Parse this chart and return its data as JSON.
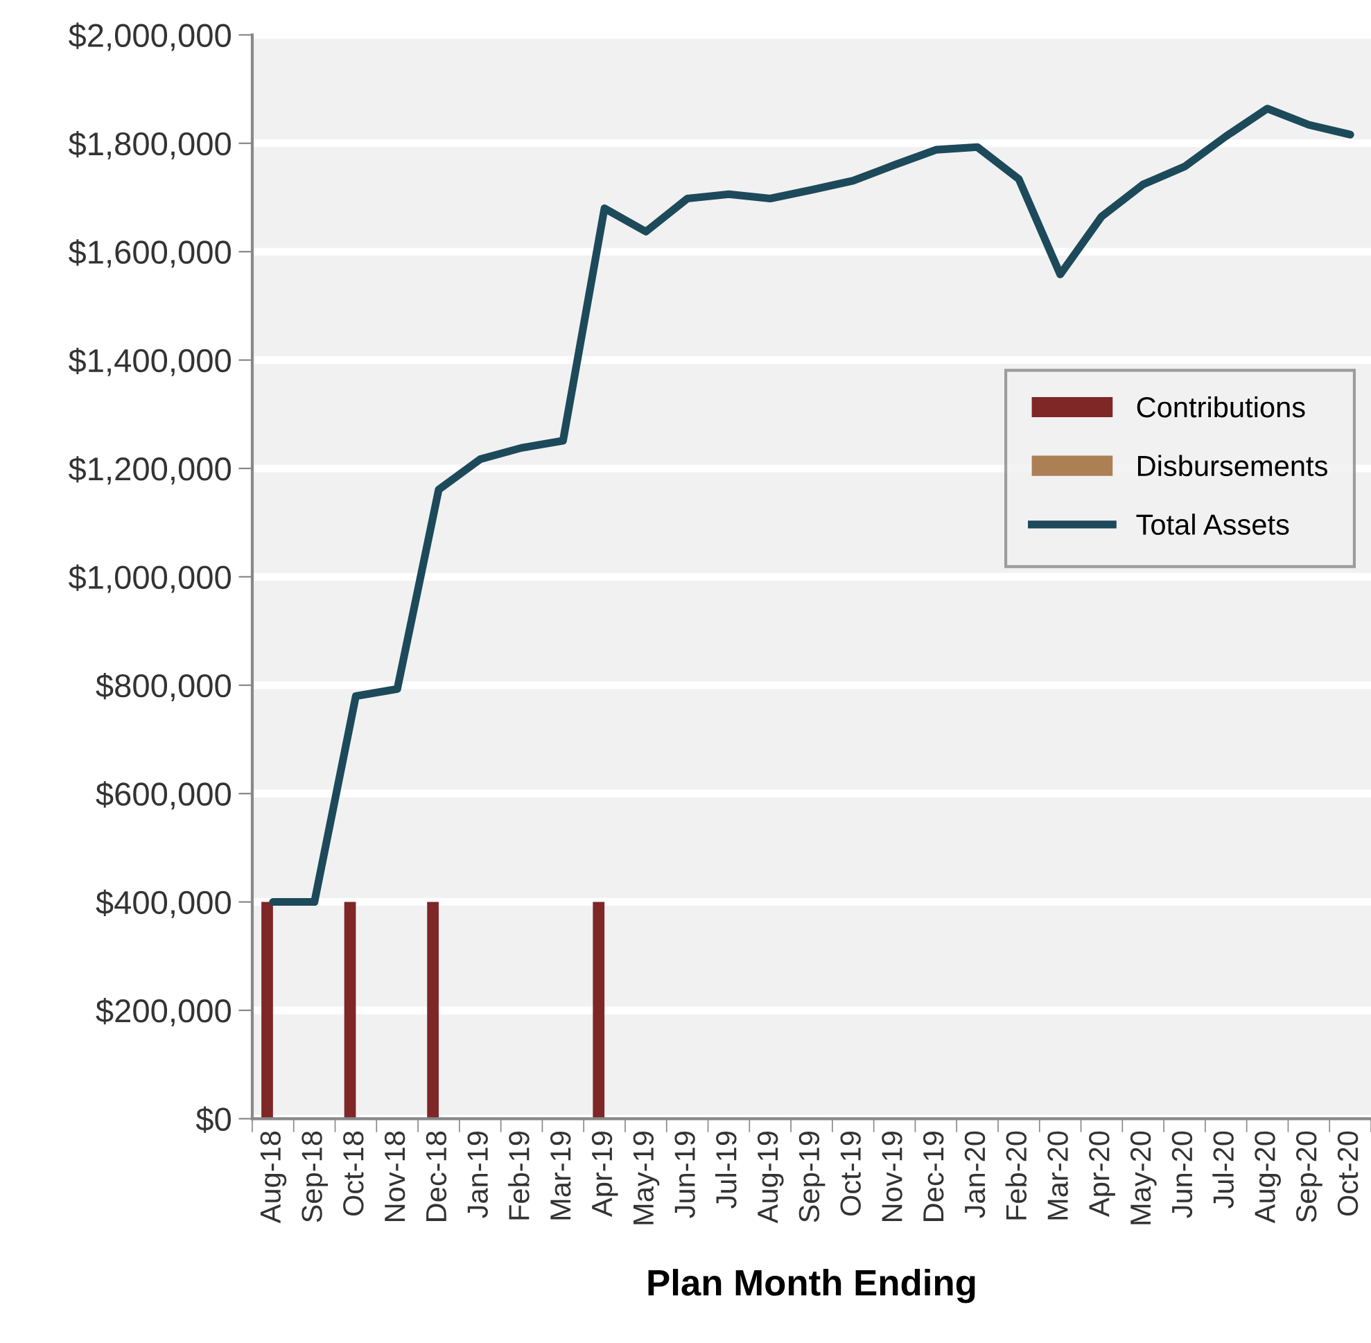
{
  "chart_data": {
    "type": "bar",
    "xlabel": "Plan Month Ending",
    "categories": [
      "Aug-18",
      "Sep-18",
      "Oct-18",
      "Nov-18",
      "Dec-18",
      "Jan-19",
      "Feb-19",
      "Mar-19",
      "Apr-19",
      "May-19",
      "Jun-19",
      "Jul-19",
      "Aug-19",
      "Sep-19",
      "Oct-19",
      "Nov-19",
      "Dec-19",
      "Jan-20",
      "Feb-20",
      "Mar-20",
      "Apr-20",
      "May-20",
      "Jun-20",
      "Jul-20",
      "Aug-20",
      "Sep-20",
      "Oct-20"
    ],
    "series": [
      {
        "name": "Contributions",
        "color": "#7f2627",
        "values": [
          400000,
          0,
          400000,
          0,
          400000,
          0,
          0,
          0,
          400000,
          0,
          0,
          0,
          0,
          0,
          0,
          0,
          0,
          0,
          0,
          0,
          0,
          0,
          0,
          0,
          0,
          0,
          0
        ]
      },
      {
        "name": "Disbursements",
        "color": "#ad7f55",
        "values": [
          0,
          0,
          0,
          0,
          0,
          0,
          0,
          0,
          0,
          0,
          0,
          0,
          0,
          0,
          0,
          0,
          0,
          0,
          0,
          0,
          0,
          0,
          0,
          0,
          0,
          0,
          0
        ]
      },
      {
        "name": "Total Assets",
        "type": "line",
        "color": "#1d4a5a",
        "values": [
          400000,
          400000,
          780000,
          793000,
          1161000,
          1217000,
          1238000,
          1251000,
          1680000,
          1637000,
          1698000,
          1706000,
          1698000,
          1714000,
          1731000,
          1760000,
          1788000,
          1793000,
          1734000,
          1558000,
          1665000,
          1724000,
          1757000,
          1813000,
          1864000,
          1834000,
          1816000
        ]
      }
    ],
    "ylim": [
      0,
      2000000
    ],
    "yticks": [
      {
        "value": 0,
        "label": "$0"
      },
      {
        "value": 200000,
        "label": "$200,000"
      },
      {
        "value": 400000,
        "label": "$400,000"
      },
      {
        "value": 600000,
        "label": "$600,000"
      },
      {
        "value": 800000,
        "label": "$800,000"
      },
      {
        "value": 1000000,
        "label": "$1,000,000"
      },
      {
        "value": 1200000,
        "label": "$1,200,000"
      },
      {
        "value": 1400000,
        "label": "$1,400,000"
      },
      {
        "value": 1600000,
        "label": "$1,600,000"
      },
      {
        "value": 1800000,
        "label": "$1,800,000"
      },
      {
        "value": 2000000,
        "label": "$2,000,000"
      }
    ],
    "grid": "y",
    "legend": "right",
    "line_style": "solid",
    "marker": "none"
  }
}
